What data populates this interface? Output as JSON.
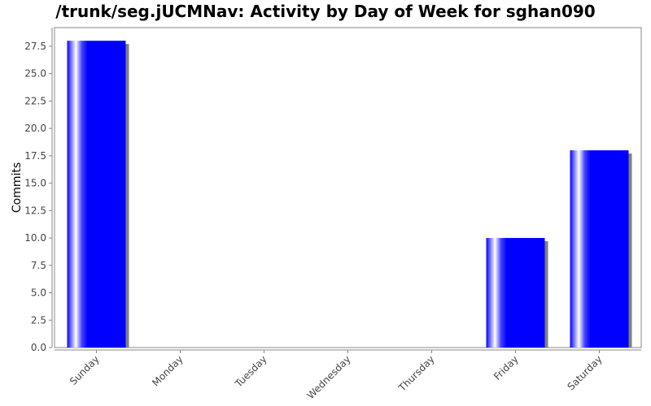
{
  "chart_data": {
    "type": "bar",
    "title": "/trunk/seg.jUCMNav: Activity by Day of Week for sghan090",
    "xlabel": "",
    "ylabel": "Commits",
    "categories": [
      "Sunday",
      "Monday",
      "Tuesday",
      "Wednesday",
      "Thursday",
      "Friday",
      "Saturday"
    ],
    "values": [
      28,
      0,
      0,
      0,
      0,
      10,
      18
    ],
    "ylim": [
      0,
      29.2
    ],
    "yticks": [
      "0.0",
      "2.5",
      "5.0",
      "7.5",
      "10.0",
      "12.5",
      "15.0",
      "17.5",
      "20.0",
      "22.5",
      "25.0",
      "27.5"
    ],
    "grid": false,
    "legend": "none",
    "bar_color": "#0000ff",
    "shadow_color": "#808080"
  }
}
